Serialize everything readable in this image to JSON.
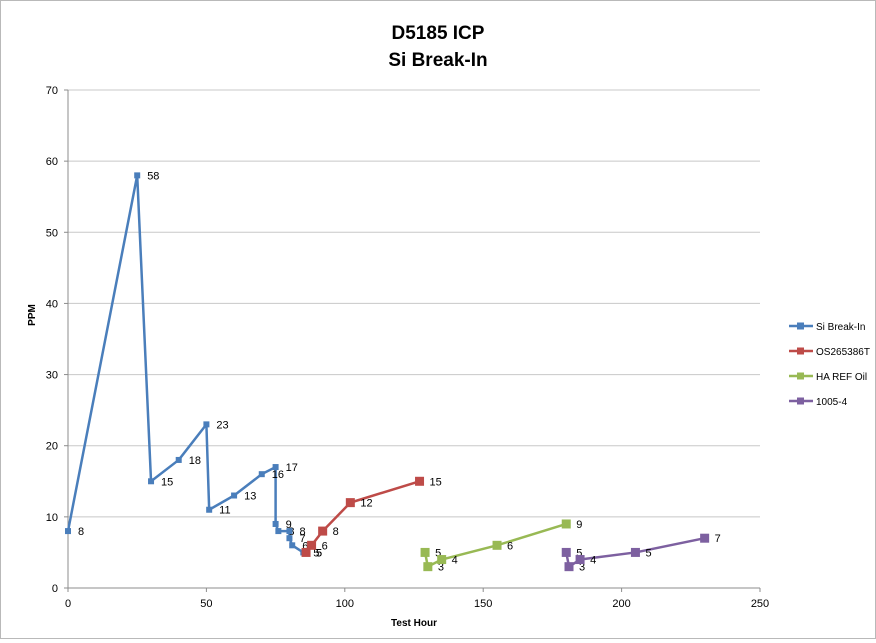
{
  "chart_data": {
    "type": "line",
    "title_lines": [
      "D5185 ICP",
      "Si Break-In"
    ],
    "xlabel": "Test Hour",
    "ylabel": "PPM",
    "xlim": [
      0,
      250
    ],
    "ylim": [
      0,
      70
    ],
    "xticks": [
      0,
      50,
      100,
      150,
      200,
      250
    ],
    "yticks": [
      0,
      10,
      20,
      30,
      40,
      50,
      60,
      70
    ],
    "grid": "horizontal",
    "legend_position": "right",
    "series": [
      {
        "name": "Si Break-In",
        "color": "#4a7ebb",
        "marker": "small-square",
        "points": [
          [
            0,
            8
          ],
          [
            25,
            58
          ],
          [
            30,
            15
          ],
          [
            40,
            18
          ],
          [
            50,
            23
          ],
          [
            51,
            11
          ],
          [
            60,
            13
          ],
          [
            70,
            16
          ],
          [
            75,
            17
          ],
          [
            75,
            9
          ],
          [
            76,
            8
          ],
          [
            80,
            8
          ],
          [
            80,
            7
          ],
          [
            81,
            6
          ],
          [
            85,
            5
          ],
          [
            86,
            5
          ]
        ],
        "labels": [
          "8",
          "58",
          "15",
          "18",
          "23",
          "11",
          "13",
          "16",
          "17",
          "9",
          "8",
          "8",
          "7",
          "6",
          "5",
          "5"
        ]
      },
      {
        "name": "OS265386T",
        "color": "#be4b48",
        "marker": "square",
        "points": [
          [
            86,
            5
          ],
          [
            88,
            6
          ],
          [
            92,
            8
          ],
          [
            102,
            12
          ],
          [
            127,
            15
          ]
        ],
        "labels": [
          "5",
          "6",
          "8",
          "12",
          "15"
        ]
      },
      {
        "name": "HA REF Oil",
        "color": "#98b954",
        "marker": "square",
        "points": [
          [
            129,
            5
          ],
          [
            130,
            3
          ],
          [
            135,
            4
          ],
          [
            155,
            6
          ],
          [
            180,
            9
          ]
        ],
        "labels": [
          "5",
          "3",
          "4",
          "6",
          "9"
        ]
      },
      {
        "name": "1005-4",
        "color": "#7d60a0",
        "marker": "square",
        "points": [
          [
            180,
            5
          ],
          [
            181,
            3
          ],
          [
            185,
            4
          ],
          [
            205,
            5
          ],
          [
            230,
            7
          ]
        ],
        "labels": [
          "5",
          "3",
          "4",
          "5",
          "7"
        ]
      }
    ]
  }
}
